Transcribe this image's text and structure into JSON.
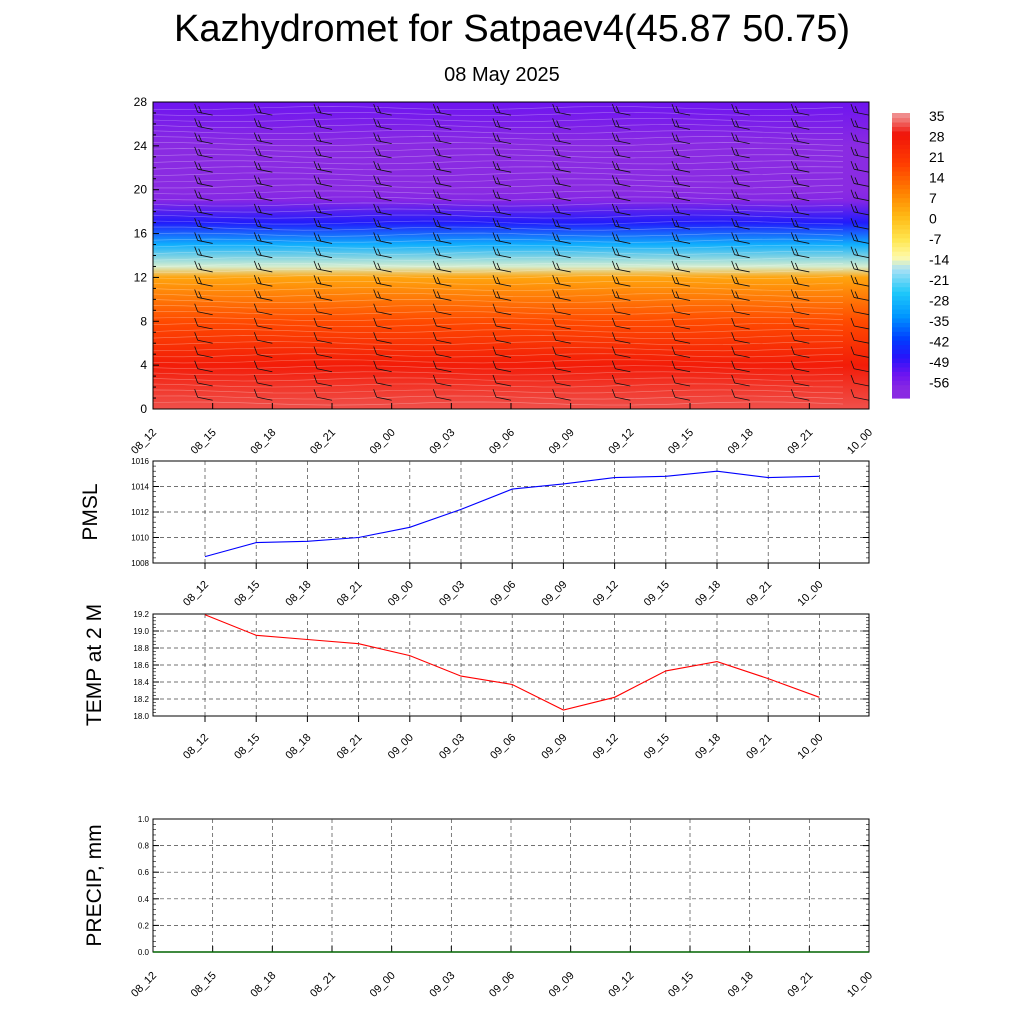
{
  "title": "Kazhydromet for Satpaev4(45.87 50.75)",
  "subtitle": "08 May 2025",
  "time_labels": [
    "08_12",
    "08_15",
    "08_18",
    "08_21",
    "09_00",
    "09_03",
    "09_06",
    "09_09",
    "09_12",
    "09_15",
    "09_18",
    "09_21",
    "10_00"
  ],
  "colorbar": {
    "labels": [
      "35",
      "28",
      "21",
      "14",
      "7",
      "0",
      "-7",
      "-14",
      "-21",
      "-28",
      "-35",
      "-42",
      "-49",
      "-56"
    ]
  },
  "chart_data": [
    {
      "type": "heatmap",
      "title": "",
      "xlabel": "",
      "ylabel": "",
      "ylim": [
        0,
        28
      ],
      "y_ticks": [
        "0",
        "4",
        "8",
        "12",
        "16",
        "20",
        "24",
        "28"
      ],
      "x_ticks": [
        "08_12",
        "08_15",
        "08_18",
        "08_21",
        "09_00",
        "09_03",
        "09_06",
        "09_09",
        "09_12",
        "09_15",
        "09_18",
        "09_21",
        "10_00"
      ],
      "vertical_profile": {
        "levels": [
          0,
          4,
          8,
          12,
          13,
          15,
          17,
          19,
          20,
          24,
          28
        ],
        "temperature": [
          33,
          28,
          18,
          5,
          -14,
          -28,
          -45,
          -56,
          -57,
          -57,
          -52
        ]
      },
      "colorbar_range": [
        -56,
        35
      ],
      "wind_barbs": true
    },
    {
      "type": "line",
      "title": "",
      "ylabel": "PMSL",
      "ylim": [
        1008,
        1016
      ],
      "y_ticks": [
        "1008",
        "1010",
        "1012",
        "1014",
        "1016"
      ],
      "categories": [
        "08_12",
        "08_15",
        "08_18",
        "08_21",
        "09_00",
        "09_03",
        "09_06",
        "09_09",
        "09_12",
        "09_15",
        "09_18",
        "09_21",
        "10_00"
      ],
      "series": [
        {
          "values": [
            1008.5,
            1009.6,
            1009.7,
            1010.0,
            1010.8,
            1012.2,
            1013.8,
            1014.2,
            1014.7,
            1014.8,
            1015.2,
            1014.7,
            1014.8
          ],
          "color": "#0000ff"
        }
      ],
      "grid": true
    },
    {
      "type": "line",
      "title": "",
      "ylabel": "TEMP at 2 M",
      "ylim": [
        18.0,
        19.2
      ],
      "y_ticks": [
        "18.0",
        "18.2",
        "18.4",
        "18.6",
        "18.8",
        "19.0",
        "19.2"
      ],
      "categories": [
        "08_12",
        "08_15",
        "08_18",
        "08_21",
        "09_00",
        "09_03",
        "09_06",
        "09_09",
        "09_12",
        "09_15",
        "09_18",
        "09_21",
        "10_00"
      ],
      "series": [
        {
          "values": [
            19.19,
            18.95,
            18.9,
            18.85,
            18.71,
            18.47,
            18.37,
            18.07,
            18.22,
            18.53,
            18.64,
            18.44,
            18.22
          ],
          "color": "#ff0000"
        }
      ],
      "grid": true
    },
    {
      "type": "line",
      "title": "",
      "ylabel": "PRECIP, mm",
      "ylim": [
        0.0,
        1.0
      ],
      "y_ticks": [
        "0.0",
        "0.2",
        "0.4",
        "0.6",
        "0.8",
        "1.0"
      ],
      "categories": [
        "08_12",
        "08_15",
        "08_18",
        "08_21",
        "09_00",
        "09_03",
        "09_06",
        "09_09",
        "09_12",
        "09_15",
        "09_18",
        "09_21",
        "10_00"
      ],
      "series": [
        {
          "values": [
            0,
            0,
            0,
            0,
            0,
            0,
            0,
            0,
            0,
            0,
            0,
            0,
            0
          ],
          "color": "#006400"
        }
      ],
      "grid": true
    }
  ]
}
